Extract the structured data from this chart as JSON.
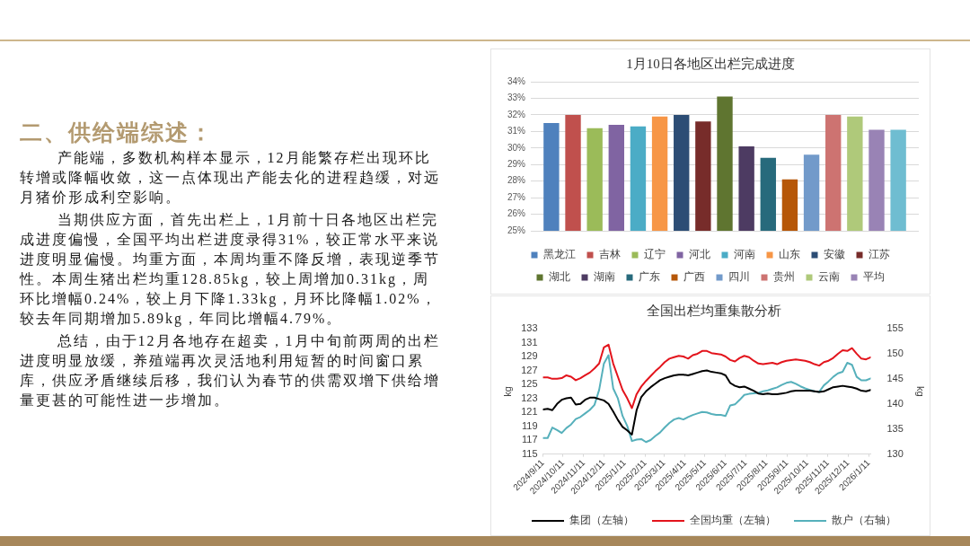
{
  "chart_data": [
    {
      "type": "other",
      "title": "二、供给端综述：",
      "annotations": [
        "产能端，多数机构样本显示，12月能繁存栏出现环比转增或降幅收敛，这一点体现出产能去化的进程趋缓，对远月猪价形成利空影响。",
        "当期供应方面，首先出栏上，1月前十日各地区出栏完成进度偏慢，全国平均出栏进度录得31%，较正常水平来说进度明显偏慢。均重方面，本周均重不降反增，表现逆季节性。本周生猪出栏均重128.85kg，较上周增加0.31kg，周环比增幅0.24%，较上月下降1.33kg，月环比降幅1.02%，较去年同期增加5.89kg，年同比增幅4.79%。",
        "总结，由于12月各地存在超卖，1月中旬前两周的出栏进度明显放缓，养殖端再次灵活地利用短暂的时间窗口累库，供应矛盾继续后移，我们认为春节的供需双增下供给增量更甚的可能性进一步增加。"
      ]
    },
    {
      "type": "bar",
      "title": "1月10日各地区出栏完成进度",
      "categories": [
        null
      ],
      "series": [
        {
          "name": "黑龙江",
          "color": "#4f81bd",
          "values": [
            31.5
          ]
        },
        {
          "name": "吉林",
          "color": "#c0504d",
          "values": [
            32.0
          ]
        },
        {
          "name": "辽宁",
          "color": "#9bbb59",
          "values": [
            31.2
          ]
        },
        {
          "name": "河北",
          "color": "#8064a2",
          "values": [
            31.4
          ]
        },
        {
          "name": "河南",
          "color": "#4bacc6",
          "values": [
            31.3
          ]
        },
        {
          "name": "山东",
          "color": "#f79646",
          "values": [
            31.9
          ]
        },
        {
          "name": "安徽",
          "color": "#2c4d75",
          "values": [
            32.0
          ]
        },
        {
          "name": "江苏",
          "color": "#772c2a",
          "values": [
            31.6
          ]
        },
        {
          "name": "湖北",
          "color": "#5f7530",
          "values": [
            33.1
          ]
        },
        {
          "name": "湖南",
          "color": "#4d3b62",
          "values": [
            30.1
          ]
        },
        {
          "name": "广东",
          "color": "#276a7c",
          "values": [
            29.4
          ]
        },
        {
          "name": "广西",
          "color": "#b65708",
          "values": [
            28.1
          ]
        },
        {
          "name": "四川",
          "color": "#729aca",
          "values": [
            29.6
          ]
        },
        {
          "name": "贵州",
          "color": "#cd7371",
          "values": [
            32.0
          ]
        },
        {
          "name": "云南",
          "color": "#afc97a",
          "values": [
            31.9
          ]
        },
        {
          "name": "平均",
          "color": "#9983b5",
          "values": [
            31.1
          ]
        },
        {
          "color": "#6fbdd1",
          "values": [
            31.1
          ]
        }
      ],
      "ylim": [
        25,
        34
      ],
      "yticks": [
        {
          "value": 25,
          "label": "25%"
        },
        {
          "value": 26,
          "label": "26%"
        },
        {
          "value": 27,
          "label": "27%"
        },
        {
          "value": 28,
          "label": "28%"
        },
        {
          "value": 29,
          "label": "29%"
        },
        {
          "value": 30,
          "label": "30%"
        },
        {
          "value": 31,
          "label": "31%"
        },
        {
          "value": 32,
          "label": "32%"
        },
        {
          "value": 33,
          "label": "33%"
        },
        {
          "value": 34,
          "label": "34%"
        }
      ],
      "grid": "y",
      "legend": "bottom"
    },
    {
      "type": "line",
      "title": "全国出栏均重集散分析",
      "ylabel": "kg",
      "y2label": "kg",
      "legend": "bottom",
      "x": [
        "2024-09-11",
        "2024-09-18",
        "2024-09-25",
        "2024-10-02",
        "2024-10-09",
        "2024-10-16",
        "2024-10-23",
        "2024-10-30",
        "2024-11-06",
        "2024-11-13",
        "2024-11-20",
        "2024-11-27",
        "2024-12-04",
        "2024-12-11",
        "2024-12-18",
        "2024-12-25",
        "2025-01-01",
        "2025-01-08",
        "2025-01-15",
        "2025-01-22",
        "2025-01-29",
        "2025-02-05",
        "2025-02-12",
        "2025-02-19",
        "2025-02-26",
        "2025-03-05",
        "2025-03-12",
        "2025-03-19",
        "2025-03-26",
        "2025-04-02",
        "2025-04-09",
        "2025-04-16",
        "2025-04-23",
        "2025-04-30",
        "2025-05-07",
        "2025-05-14",
        "2025-05-21",
        "2025-05-28",
        "2025-06-04",
        "2025-06-11",
        "2025-06-18",
        "2025-06-25",
        "2025-07-02",
        "2025-07-09",
        "2025-07-16",
        "2025-07-23",
        "2025-07-30",
        "2025-08-06",
        "2025-08-13",
        "2025-08-20",
        "2025-08-27",
        "2025-09-03",
        "2025-09-10",
        "2025-09-17",
        "2025-09-24",
        "2025-10-01",
        "2025-10-08",
        "2025-10-15",
        "2025-10-22",
        "2025-10-29",
        "2025-11-05",
        "2025-11-12",
        "2025-11-19",
        "2025-11-26",
        "2025-12-03",
        "2025-12-10",
        "2025-12-17",
        "2025-12-24",
        "2025-12-31",
        "2026-01-07",
        "2026-01-14"
      ],
      "series": [
        {
          "name": "集团（左轴）",
          "color": "#000000",
          "values": [
            121.4,
            121.5,
            121.3,
            122.2,
            122.8,
            123.0,
            123.1,
            122.1,
            122.2,
            122.8,
            123.1,
            123.1,
            122.9,
            122.7,
            122.2,
            121.1,
            119.9,
            118.9,
            118.4,
            117.8,
            121.3,
            123.2,
            124.0,
            124.6,
            125.1,
            125.6,
            125.9,
            126.1,
            126.3,
            126.4,
            126.4,
            126.3,
            126.5,
            126.7,
            126.9,
            127.0,
            126.8,
            126.7,
            126.6,
            126.3,
            125.2,
            124.8,
            124.6,
            124.7,
            124.4,
            124.1,
            123.7,
            123.6,
            123.7,
            123.6,
            123.6,
            123.7,
            123.8,
            124.0,
            124.1,
            124.1,
            124.1,
            124.1,
            124.0,
            123.9,
            124.0,
            124.3,
            124.6,
            124.7,
            124.8,
            124.7,
            124.6,
            124.4,
            124.1,
            124.0,
            124.2
          ]
        },
        {
          "name": "全国均重（左轴）",
          "color": "#e3141c",
          "values": [
            126.0,
            126.0,
            125.8,
            125.8,
            125.9,
            126.3,
            126.1,
            125.6,
            125.9,
            126.3,
            126.7,
            127.3,
            128.0,
            130.3,
            130.7,
            128.0,
            126.1,
            124.2,
            123.0,
            121.6,
            123.6,
            124.7,
            125.5,
            126.2,
            126.9,
            127.5,
            128.2,
            128.7,
            128.9,
            129.1,
            129.0,
            128.7,
            129.2,
            129.4,
            129.8,
            129.8,
            129.5,
            129.4,
            129.3,
            129.0,
            128.5,
            128.3,
            128.8,
            129.1,
            128.9,
            128.4,
            128.0,
            127.9,
            128.0,
            128.1,
            127.9,
            128.2,
            128.4,
            128.5,
            128.6,
            128.5,
            128.4,
            128.2,
            127.9,
            127.7,
            128.2,
            128.4,
            128.8,
            129.4,
            129.9,
            129.8,
            130.2,
            129.4,
            128.7,
            128.6,
            128.9
          ]
        },
        {
          "name": "散户（右轴）",
          "color": "#56b0bb",
          "axis": "y2",
          "values": [
            133.2,
            133.2,
            135.3,
            134.8,
            134.2,
            135.2,
            135.9,
            137.0,
            137.4,
            138.1,
            138.8,
            139.8,
            142.8,
            148.0,
            149.7,
            143.1,
            141.1,
            137.6,
            135.6,
            132.6,
            132.9,
            133.0,
            132.4,
            132.8,
            133.6,
            134.3,
            135.3,
            136.2,
            136.9,
            137.2,
            136.9,
            137.4,
            137.8,
            138.1,
            138.4,
            138.3,
            138.0,
            137.8,
            137.8,
            137.6,
            139.7,
            139.9,
            140.8,
            141.8,
            142.0,
            142.1,
            142.2,
            142.5,
            142.7,
            143.0,
            143.3,
            143.8,
            144.2,
            144.4,
            144.0,
            143.5,
            143.1,
            142.8,
            142.5,
            142.4,
            143.7,
            144.5,
            145.4,
            146.1,
            146.4,
            148.2,
            147.8,
            145.4,
            144.7,
            144.7,
            145.1
          ]
        }
      ],
      "xlim": [
        "2024-09-11",
        "2026-01-14"
      ],
      "xticks": [
        {
          "value": "2024-09-11",
          "label": "2024/9/11"
        },
        {
          "value": "2024-10-11",
          "label": "2024/10/11"
        },
        {
          "value": "2024-11-11",
          "label": "2024/11/11"
        },
        {
          "value": "2024-12-11",
          "label": "2024/12/11"
        },
        {
          "value": "2025-01-11",
          "label": "2025/1/11"
        },
        {
          "value": "2025-02-11",
          "label": "2025/2/11"
        },
        {
          "value": "2025-03-11",
          "label": "2025/3/11"
        },
        {
          "value": "2025-04-11",
          "label": "2025/4/11"
        },
        {
          "value": "2025-05-11",
          "label": "2025/5/11"
        },
        {
          "value": "2025-06-11",
          "label": "2025/6/11"
        },
        {
          "value": "2025-07-11",
          "label": "2025/7/11"
        },
        {
          "value": "2025-08-11",
          "label": "2025/8/11"
        },
        {
          "value": "2025-09-11",
          "label": "2025/9/11"
        },
        {
          "value": "2025-10-11",
          "label": "2025/10/11"
        },
        {
          "value": "2025-11-11",
          "label": "2025/11/11"
        },
        {
          "value": "2025-12-11",
          "label": "2025/12/11"
        },
        {
          "value": "2026-01-11",
          "label": "2026/1/11"
        }
      ],
      "ylim": [
        115,
        133
      ],
      "yticks": [
        115,
        117,
        119,
        121,
        123,
        125,
        127,
        129,
        131,
        133
      ],
      "y2lim": [
        130,
        155
      ],
      "y2ticks": [
        130,
        135,
        140,
        145,
        150,
        155
      ]
    }
  ]
}
